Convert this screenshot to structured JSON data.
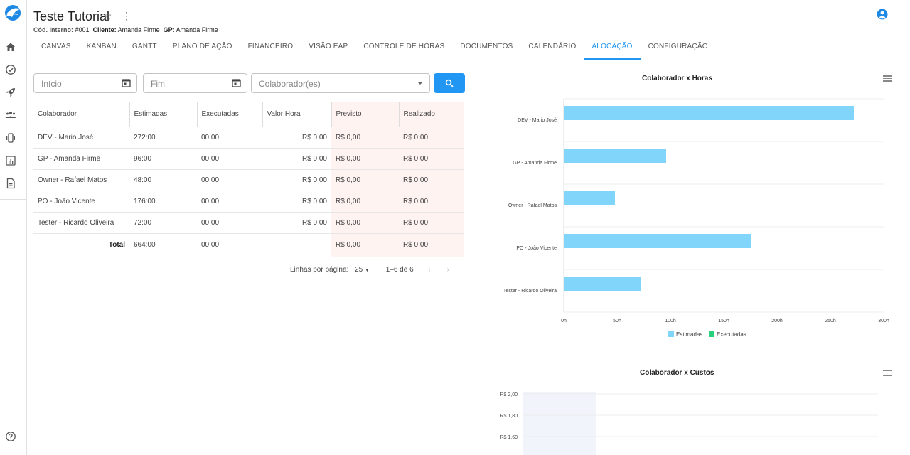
{
  "header": {
    "title": "Teste Tutorial",
    "code_label": "Cód. Interno:",
    "code_value": "#001",
    "client_label": "Cliente:",
    "client_value": "Amanda Firme",
    "gp_label": "GP:",
    "gp_value": "Amanda Firme"
  },
  "tabs": [
    "CANVAS",
    "KANBAN",
    "GANTT",
    "PLANO DE AÇÃO",
    "FINANCEIRO",
    "VISÃO EAP",
    "CONTROLE DE HORAS",
    "DOCUMENTOS",
    "CALENDÁRIO",
    "ALOCAÇÃO",
    "CONFIGURAÇÃO"
  ],
  "active_tab": "ALOCAÇÃO",
  "filters": {
    "start_placeholder": "Início",
    "end_placeholder": "Fim",
    "collaborator_placeholder": "Colaborador(es)"
  },
  "table": {
    "headers": [
      "Colaborador",
      "Estimadas",
      "Executadas",
      "Valor Hora",
      "Previsto",
      "Realizado"
    ],
    "rows": [
      [
        "DEV - Mario José",
        "272:00",
        "00:00",
        "R$ 0.00",
        "R$ 0,00",
        "R$ 0,00"
      ],
      [
        "GP - Amanda Firme",
        "96:00",
        "00:00",
        "R$ 0.00",
        "R$ 0,00",
        "R$ 0,00"
      ],
      [
        "Owner - Rafael Matos",
        "48:00",
        "00:00",
        "R$ 0.00",
        "R$ 0,00",
        "R$ 0,00"
      ],
      [
        "PO - João Vicente",
        "176:00",
        "00:00",
        "R$ 0.00",
        "R$ 0,00",
        "R$ 0,00"
      ],
      [
        "Tester - Ricardo Oliveira",
        "72:00",
        "00:00",
        "R$ 0.00",
        "R$ 0,00",
        "R$ 0,00"
      ]
    ],
    "total_label": "Total",
    "total": [
      "664:00",
      "00:00",
      "R$ 0,00",
      "R$ 0,00"
    ]
  },
  "pager": {
    "rows_label": "Linhas por página:",
    "rows_value": "25",
    "range": "1–6 de 6"
  },
  "colors": {
    "accent": "#2196f3",
    "estimadas": "#81d4fa",
    "executadas": "#26d07c",
    "pink_cell": "#fff3f2"
  },
  "chart_data": [
    {
      "type": "bar",
      "orientation": "horizontal",
      "title": "Colaborador x Horas",
      "categories": [
        "DEV - Mario José",
        "GP - Amanda Firme",
        "Owner - Rafael Matos",
        "PO - João Vicente",
        "Tester - Ricardo Oliveira"
      ],
      "series": [
        {
          "name": "Estimadas",
          "values": [
            272,
            96,
            48,
            176,
            72
          ]
        },
        {
          "name": "Executadas",
          "values": [
            0,
            0,
            0,
            0,
            0
          ]
        }
      ],
      "xlim": [
        0,
        300
      ],
      "xticks": [
        "0h",
        "50h",
        "100h",
        "150h",
        "200h",
        "250h",
        "300h"
      ],
      "legend": "bottom"
    },
    {
      "type": "bar",
      "title": "Colaborador x Custos",
      "yticks": [
        "R$ 2,00",
        "R$ 1,80",
        "R$ 1,60"
      ]
    }
  ]
}
